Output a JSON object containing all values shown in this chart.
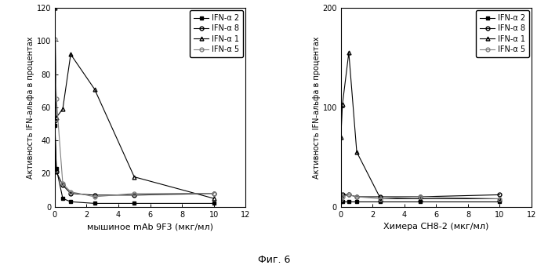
{
  "left_chart": {
    "xlabel": "мышиное mAb 9F3 (мкг/мл)",
    "ylabel": "Активность IFN-альфа в процентах",
    "ylim": [
      0,
      120
    ],
    "yticks": [
      0,
      20,
      40,
      60,
      80,
      100,
      120
    ],
    "xlim": [
      0,
      12
    ],
    "xticks": [
      0,
      2,
      4,
      6,
      8,
      10,
      12
    ],
    "series": [
      {
        "label": "IFN-α 2",
        "x": [
          0,
          0.1,
          0.5,
          1,
          2.5,
          5,
          10
        ],
        "y": [
          49,
          23,
          5,
          3,
          2,
          2,
          2
        ],
        "marker": "s",
        "fillstyle": "full",
        "color": "black",
        "linestyle": "-"
      },
      {
        "label": "IFN-α 8",
        "x": [
          0,
          0.1,
          0.5,
          1,
          2.5,
          5,
          10
        ],
        "y": [
          52,
          21,
          13,
          8,
          7,
          7,
          8
        ],
        "marker": "o",
        "fillstyle": "none",
        "color": "black",
        "linestyle": "-"
      },
      {
        "label": "IFN-α 1",
        "x": [
          0,
          0.1,
          0.5,
          1,
          2.5,
          5,
          10
        ],
        "y": [
          120,
          54,
          59,
          92,
          71,
          18,
          5
        ],
        "marker": "^",
        "fillstyle": "none",
        "color": "black",
        "linestyle": "-"
      },
      {
        "label": "IFN-α 5",
        "x": [
          0,
          0.1,
          0.5,
          1,
          2.5,
          5,
          10
        ],
        "y": [
          101,
          65,
          14,
          9,
          6,
          8,
          8
        ],
        "marker": "o",
        "fillstyle": "none",
        "color": "gray",
        "linestyle": "-"
      }
    ]
  },
  "right_chart": {
    "xlabel": "Химера CH8-2 (мкг/мл)",
    "ylabel": "Активность IFN-альфа в процентах",
    "ylim": [
      0,
      200
    ],
    "yticks": [
      0,
      100,
      200
    ],
    "xlim": [
      0,
      12
    ],
    "xticks": [
      0,
      2,
      4,
      6,
      8,
      10,
      12
    ],
    "series": [
      {
        "label": "IFN-α 2",
        "x": [
          0,
          0.1,
          0.5,
          1,
          2.5,
          5,
          10
        ],
        "y": [
          5,
          5,
          5,
          5,
          5,
          5,
          5
        ],
        "marker": "s",
        "fillstyle": "full",
        "color": "black",
        "linestyle": "-"
      },
      {
        "label": "IFN-α 8",
        "x": [
          0,
          0.1,
          0.5,
          1,
          2.5,
          5,
          10
        ],
        "y": [
          10,
          12,
          12,
          10,
          10,
          10,
          12
        ],
        "marker": "o",
        "fillstyle": "none",
        "color": "black",
        "linestyle": "-"
      },
      {
        "label": "IFN-α 1",
        "x": [
          0,
          0.1,
          0.5,
          1,
          2.5,
          5,
          10
        ],
        "y": [
          70,
          103,
          155,
          55,
          8,
          8,
          8
        ],
        "marker": "^",
        "fillstyle": "none",
        "color": "black",
        "linestyle": "-"
      },
      {
        "label": "IFN-α 5",
        "x": [
          0,
          0.1,
          0.5,
          1,
          2.5,
          5,
          10
        ],
        "y": [
          8,
          10,
          12,
          10,
          8,
          10,
          8
        ],
        "marker": "o",
        "fillstyle": "none",
        "color": "gray",
        "linestyle": "-"
      }
    ]
  },
  "caption": "Фиг. 6",
  "bg_color": "#ffffff",
  "tick_fontsize": 7,
  "legend_fontsize": 7,
  "xlabel_fontsize": 8,
  "ylabel_fontsize": 7,
  "caption_fontsize": 9
}
